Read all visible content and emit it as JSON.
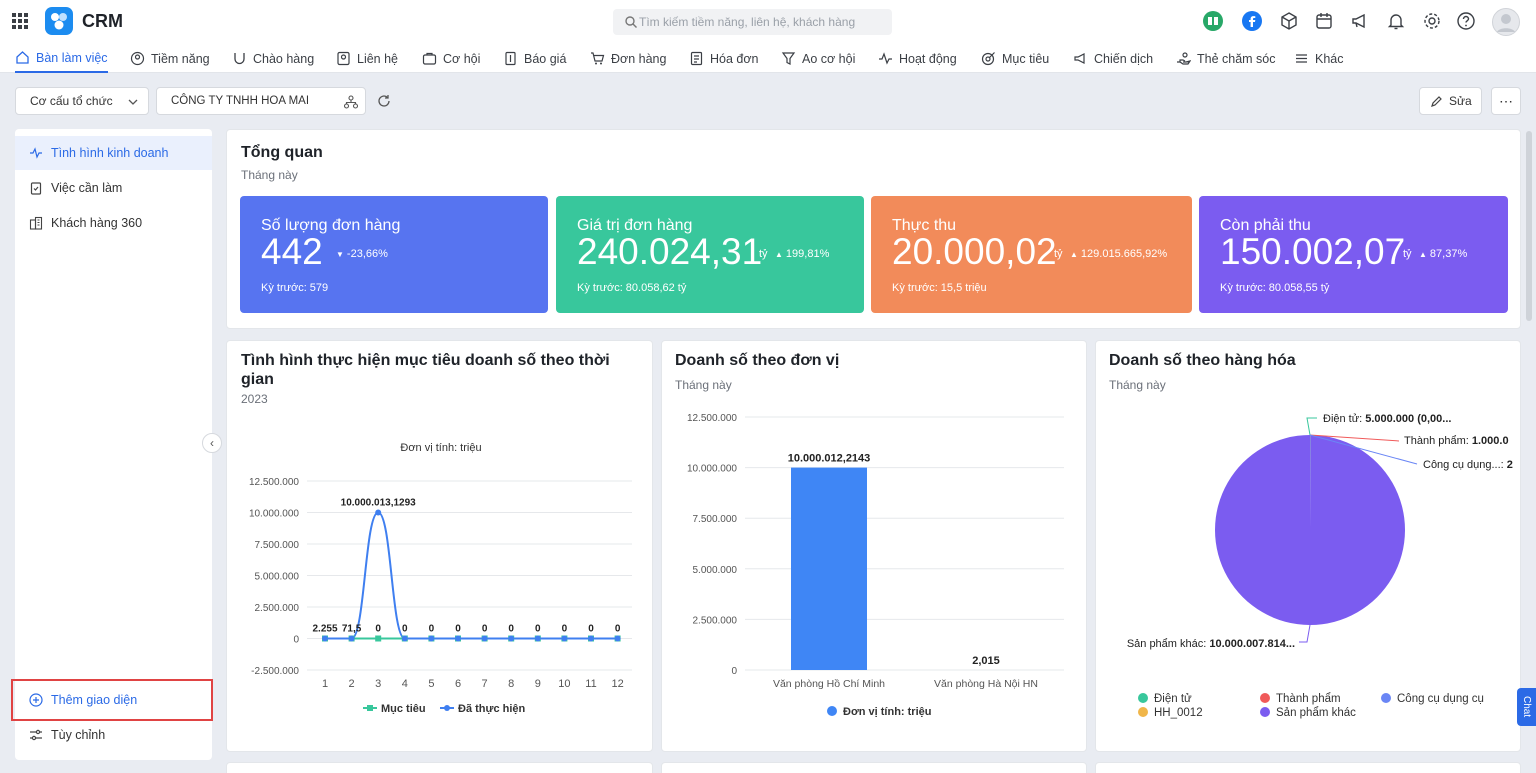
{
  "app": {
    "name": "CRM"
  },
  "search": {
    "placeholder": "Tìm kiếm tiềm năng, liên hệ, khách hàng"
  },
  "nav": [
    "Bàn làm việc",
    "Tiềm năng",
    "Chào hàng",
    "Liên hệ",
    "Cơ hội",
    "Báo giá",
    "Đơn hàng",
    "Hóa đơn",
    "Ao cơ hội",
    "Hoạt động",
    "Mục tiêu",
    "Chiến dịch",
    "Thẻ chăm sóc",
    "Khác"
  ],
  "toolbar": {
    "org_select": "Cơ cấu tổ chức",
    "company": "CÔNG TY TNHH HOA MAI",
    "edit": "Sửa"
  },
  "sidebar": {
    "items": [
      "Tình hình kinh doanh",
      "Việc cần làm",
      "Khách hàng 360"
    ],
    "add_view": "Thêm giao diện",
    "customize": "Tùy chỉnh"
  },
  "overview": {
    "title": "Tổng quan",
    "period": "Tháng này",
    "kpis": [
      {
        "label": "Số lượng đơn hàng",
        "value": "442",
        "unit": "",
        "change": "-23,66%",
        "direction": "down",
        "prev": "Kỳ trước: 579",
        "color": "#5774f0"
      },
      {
        "label": "Giá trị đơn hàng",
        "value": "240.024,31",
        "unit": "tỷ",
        "change": "199,81%",
        "direction": "up",
        "prev": "Kỳ trước: 80.058,62 tỷ",
        "color": "#38c79c"
      },
      {
        "label": "Thực thu",
        "value": "20.000,02",
        "unit": "tỷ",
        "change": "129.015.665,92%",
        "direction": "up",
        "prev": "Kỳ trước: 15,5 triệu",
        "color": "#f28b5a"
      },
      {
        "label": "Còn phải thu",
        "value": "150.002,07",
        "unit": "tỷ",
        "change": "87,37%",
        "direction": "up",
        "prev": "Kỳ trước: 80.058,55 tỷ",
        "color": "#7b5cf0"
      }
    ]
  },
  "target_card": {
    "title_line1": "Tình hình thực hiện mục tiêu doanh số theo thời",
    "title_line2": "gian",
    "period": "2023"
  },
  "unit_card": {
    "title": "Doanh số theo đơn vị",
    "period": "Tháng này"
  },
  "goods_card": {
    "title": "Doanh số theo hàng hóa",
    "period": "Tháng này"
  },
  "chart_data": [
    {
      "type": "line",
      "title": "Đơn vị tính: triệu",
      "categories": [
        "1",
        "2",
        "3",
        "4",
        "5",
        "6",
        "7",
        "8",
        "9",
        "10",
        "11",
        "12"
      ],
      "yticks": [
        "12.500.000",
        "10.000.000",
        "7.500.000",
        "5.000.000",
        "2.500.000",
        "0",
        "-2.500.000"
      ],
      "ylim": [
        -2500000,
        12500000
      ],
      "series": [
        {
          "name": "Mục tiêu",
          "color": "#38c79c",
          "values": [
            0,
            0,
            0,
            0,
            0,
            0,
            0,
            0,
            0,
            0,
            0,
            0
          ]
        },
        {
          "name": "Đã thực hiện",
          "color": "#3f7ff0",
          "values": [
            2255,
            71.5,
            10000013.1293,
            0,
            0,
            0,
            0,
            0,
            0,
            0,
            0,
            0
          ]
        }
      ],
      "data_labels": [
        "2.255",
        "71,5",
        "0",
        "0",
        "0",
        "0",
        "0",
        "0",
        "0",
        "0",
        "0",
        "0"
      ],
      "peak_label": "10.000.013,1293",
      "legend": "bottom"
    },
    {
      "type": "bar",
      "categories": [
        "Văn phòng Hồ Chí Minh",
        "Văn phòng Hà Nội HN"
      ],
      "series": [
        {
          "name": "Đơn vị tính: triệu",
          "color": "#3f86f5",
          "values": [
            10000012.2143,
            2.015
          ]
        }
      ],
      "data_labels": [
        "10.000.012,2143",
        "2,015"
      ],
      "yticks": [
        "12.500.000",
        "10.000.000",
        "7.500.000",
        "5.000.000",
        "2.500.000",
        "0"
      ],
      "ylim": [
        0,
        12500000
      ],
      "legend": "bottom"
    },
    {
      "type": "pie",
      "slices": [
        {
          "label": "Điện tử",
          "value": 5000000,
          "color": "#38c79c",
          "callout": "Điện tử: 5.000.000 (0,00..."
        },
        {
          "label": "Thành phẩm",
          "value": 1000000,
          "color": "#f05a5a",
          "callout": "Thành phẩm: 1.000.0"
        },
        {
          "label": "Công cụ dụng cụ",
          "value": 1000000,
          "color": "#6a86f5",
          "callout": "Công cụ dụng...: 2"
        },
        {
          "label": "HH_0012",
          "value": 100,
          "color": "#f0b64a",
          "callout": ""
        },
        {
          "label": "Sản phẩm khác",
          "value": 10000007814,
          "color": "#7b5cf0",
          "callout": "Sản phẩm khác: 10.000.007.814..."
        }
      ],
      "legend": "bottom"
    }
  ],
  "chat": {
    "label": "Chat"
  }
}
